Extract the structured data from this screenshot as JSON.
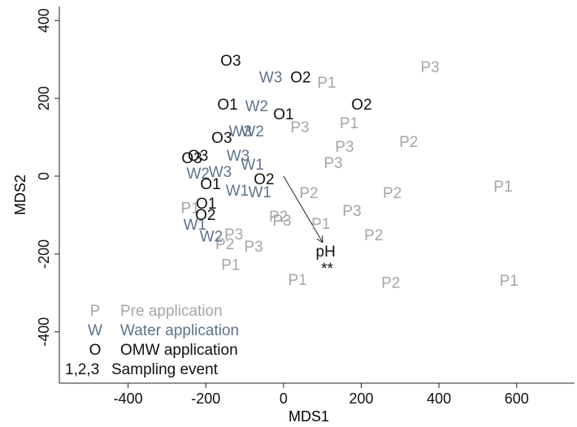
{
  "chart_data": {
    "type": "scatter",
    "xlabel": "MDS1",
    "ylabel": "MDS2",
    "xlim": [
      -577,
      749
    ],
    "ylim": [
      -532,
      436
    ],
    "xticks": [
      -400,
      -200,
      0,
      200,
      400,
      600
    ],
    "yticks": [
      -400,
      -200,
      0,
      200,
      400
    ],
    "series": [
      {
        "code": "P",
        "name": "Pre application",
        "color": "#a6a6a6",
        "labels": [
          "P1",
          "P3",
          "P3",
          "P1",
          "P3",
          "P2",
          "P3",
          "P1",
          "P2",
          "P2",
          "P3",
          "P2",
          "P3",
          "P1",
          "P2",
          "P3",
          "P2",
          "P3",
          "P1",
          "P1",
          "P2",
          "P1",
          "P1"
        ],
        "x": [
          111,
          377,
          42,
          169,
          157,
          322,
          128,
          565,
          65,
          280,
          176,
          -13,
          -4,
          96,
          232,
          -128,
          -151,
          -77,
          -136,
          36,
          276,
          580,
          -240
        ],
        "y": [
          238,
          278,
          123,
          134,
          73,
          86,
          31,
          -29,
          -46,
          -46,
          -92,
          -106,
          -117,
          -125,
          -154,
          -152,
          -177,
          -184,
          -230,
          -269,
          -276,
          -271,
          -84
        ]
      },
      {
        "code": "W",
        "name": "Water application",
        "color": "#5f7389",
        "labels": [
          "W3",
          "W2",
          "W3",
          "W2",
          "W3",
          "W1",
          "W3",
          "W2",
          "W1",
          "W1",
          "W1",
          "W2"
        ],
        "x": [
          -33,
          -69,
          -111,
          -80,
          -117,
          -80,
          -163,
          -220,
          -119,
          -61,
          -228,
          -186
        ],
        "y": [
          251,
          177,
          113,
          113,
          50,
          27,
          8,
          4,
          -40,
          -44,
          -127,
          -157
        ]
      },
      {
        "code": "O",
        "name": "OMW application",
        "color": "#111111",
        "labels": [
          "O3",
          "O2",
          "O1",
          "O1",
          "O2",
          "O3",
          "O3",
          "O3",
          "O2",
          "O1",
          "O1",
          "O2"
        ],
        "x": [
          -136,
          44,
          -144,
          0,
          201,
          -159,
          -220,
          -236,
          -50,
          -188,
          -199,
          -201
        ],
        "y": [
          294,
          251,
          182,
          157,
          182,
          96,
          50,
          44,
          -10,
          -23,
          -73,
          -102
        ]
      }
    ],
    "legend_note": {
      "code": "1,2,3",
      "text": "Sampling event"
    },
    "vector": {
      "label": "pH",
      "significance": "**",
      "x": 100,
      "y": -169
    }
  }
}
